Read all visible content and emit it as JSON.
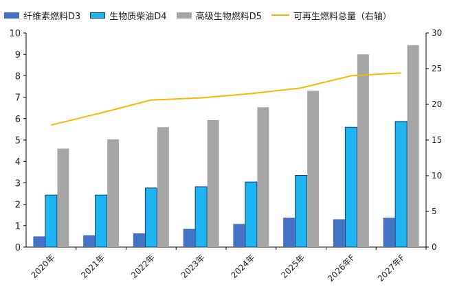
{
  "chart_data": {
    "type": "bar",
    "categories": [
      "2020年",
      "2021年",
      "2022年",
      "2023年",
      "2024年",
      "2025年",
      "2026年F",
      "2027年F"
    ],
    "series": [
      {
        "name": "纤维素燃料D3",
        "type": "bar",
        "axis": "left",
        "color": "#4472C4",
        "values": [
          0.5,
          0.55,
          0.64,
          0.85,
          1.08,
          1.37,
          1.3,
          1.37
        ]
      },
      {
        "name": "生物质柴油D4",
        "type": "bar",
        "axis": "left",
        "color": "#1EB4EF",
        "values": [
          2.43,
          2.43,
          2.76,
          2.82,
          3.04,
          3.35,
          5.6,
          5.87
        ]
      },
      {
        "name": "高级生物燃料D5",
        "type": "bar",
        "axis": "left",
        "color": "#A6A6A6",
        "values": [
          4.6,
          5.03,
          5.6,
          5.93,
          6.53,
          7.3,
          9.0,
          9.43
        ]
      },
      {
        "name": "可再生燃料总量（右轴）",
        "type": "line",
        "axis": "right",
        "color": "#F5B800",
        "values": [
          17.1,
          18.8,
          20.6,
          20.9,
          21.5,
          22.3,
          24.0,
          24.4
        ]
      }
    ],
    "y_left": {
      "min": 0,
      "max": 10,
      "ticks": [
        "0",
        "1",
        "2",
        "3",
        "4",
        "5",
        "6",
        "7",
        "8",
        "9",
        "10"
      ]
    },
    "y_right": {
      "min": 0,
      "max": 30,
      "ticks": [
        "0",
        "5",
        "10",
        "15",
        "20",
        "25",
        "30"
      ]
    },
    "grid": false,
    "legend_position": "top"
  }
}
